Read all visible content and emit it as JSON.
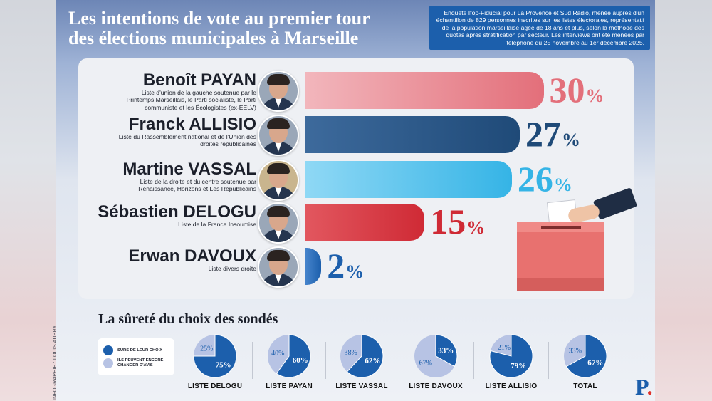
{
  "header": {
    "title_line1": "Les intentions de vote au premier tour",
    "title_line2": "des élections municipales à Marseille",
    "methodology": "Enquête Ifop-Fiducial pour La Provence et Sud Radio, menée auprès d'un échantillon de 829 personnes inscrites sur les listes électorales, représentatif de la population marseillaise âgée de 18 ans et plus, selon la méthode des quotas après stratification par secteur. Les interviews ont été menées par téléphone du 25 novembre au 1er décembre 2025."
  },
  "colors": {
    "payan": "#e36f7a",
    "allisio": "#1f4a78",
    "vassal": "#35b4e6",
    "delogu": "#cf2a35",
    "davoux": "#1c5fac",
    "sure": "#1c5fac",
    "unsure": "#b7c3e4"
  },
  "chart_data": [
    {
      "type": "bar",
      "orientation": "horizontal",
      "categories": [
        "Benoît PAYAN",
        "Franck ALLISIO",
        "Martine VASSAL",
        "Sébastien DELOGU",
        "Erwan DAVOUX"
      ],
      "values": [
        30,
        27,
        26,
        15,
        2
      ],
      "unit": "%",
      "value_labels": [
        "30",
        "27",
        "26",
        "15",
        "2"
      ],
      "unit_label": "%",
      "candidates": [
        {
          "name": "Benoît PAYAN",
          "list": "Liste d'union de la gauche soutenue par le Printemps Marseillais, le Parti socialiste, le Parti communiste et les Écologistes (ex-EELV)",
          "value": 30,
          "color_key": "payan"
        },
        {
          "name": "Franck ALLISIO",
          "list": "Liste du Rassemblement national et de l'Union des droites républicaines",
          "value": 27,
          "color_key": "allisio"
        },
        {
          "name": "Martine VASSAL",
          "list": "Liste de la droite et du centre soutenue par Renaissance, Horizons et Les Républicains",
          "value": 26,
          "color_key": "vassal"
        },
        {
          "name": "Sébastien DELOGU",
          "list": "Liste de la France Insoumise",
          "value": 15,
          "color_key": "delogu"
        },
        {
          "name": "Erwan DAVOUX",
          "list": "Liste divers droite",
          "value": 2,
          "color_key": "davoux"
        }
      ]
    },
    {
      "type": "pie",
      "title": "La sûreté du choix des sondés",
      "legend": [
        "SÛRS DE LEUR CHOIX",
        "ILS PEUVENT ENCORE CHANGER D'AVIS"
      ],
      "pies": [
        {
          "label": "LISTE DELOGU",
          "sure": 75,
          "unsure": 25
        },
        {
          "label": "LISTE PAYAN",
          "sure": 60,
          "unsure": 40
        },
        {
          "label": "LISTE VASSAL",
          "sure": 62,
          "unsure": 38
        },
        {
          "label": "LISTE DAVOUX",
          "sure": 33,
          "unsure": 67
        },
        {
          "label": "LISTE ALLISIO",
          "sure": 79,
          "unsure": 21
        },
        {
          "label": "TOTAL",
          "sure": 67,
          "unsure": 33
        }
      ]
    }
  ],
  "credit": "INFOGRAPHIE : LOUIS AUBRY",
  "logo": {
    "letter": "P",
    "dot": "."
  }
}
